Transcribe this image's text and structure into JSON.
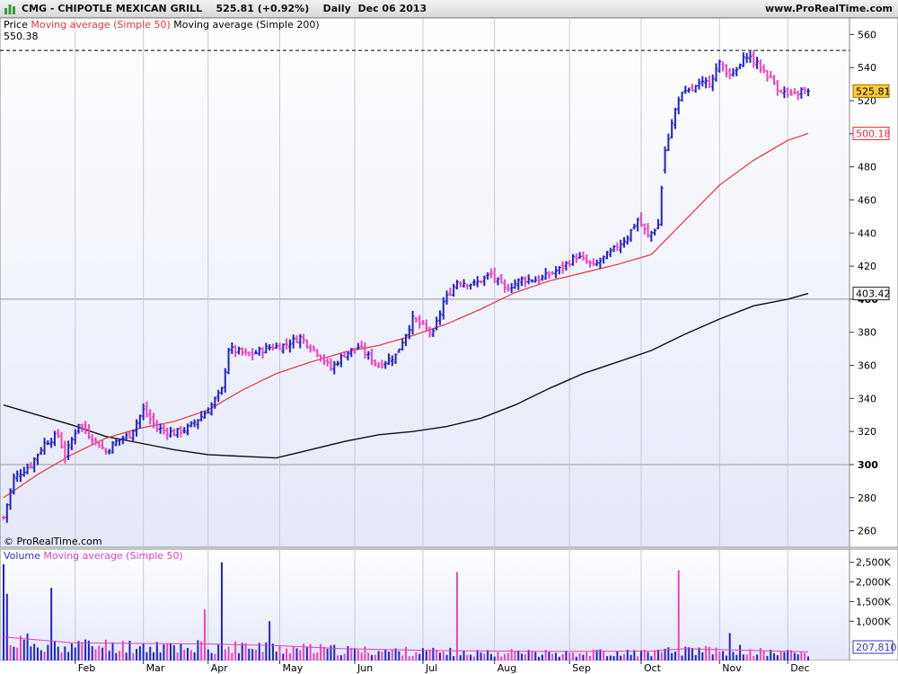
{
  "header": {
    "symbol_text": "CMG - CHIPOTLE MEXICAN GRILL",
    "price_change": "525.81 (+0.92%)",
    "period_date": "Daily  Dec 06 2013",
    "site": "www.ProRealTime.com"
  },
  "legend": {
    "price_label": "Price",
    "ma50_label": "Moving average (Simple 50)",
    "ma200_label": "Moving average (Simple 200)",
    "high_label": "550.38",
    "copyright": "© ProRealTime.com",
    "volume_label": "Volume",
    "vol_ma_label": "Moving average (Simple 50)"
  },
  "chart_data": {
    "type": "ohlc",
    "price_axis": {
      "min": 250,
      "max": 570,
      "ticks": [
        260,
        280,
        300,
        320,
        340,
        360,
        380,
        400,
        420,
        440,
        460,
        480,
        500,
        520,
        540,
        560
      ],
      "bold_ticks": [
        300,
        400
      ]
    },
    "volume_axis": {
      "max": 2700,
      "ticks": [
        1000,
        1500,
        2000,
        2500
      ],
      "tick_labels": [
        "1,000K",
        "1,500K",
        "2,000K",
        "2,500K"
      ],
      "last_label": "207,810"
    },
    "x_labels": [
      {
        "label": "Feb",
        "day": 21
      },
      {
        "label": "Mar",
        "day": 41
      },
      {
        "label": "Apr",
        "day": 60
      },
      {
        "label": "May",
        "day": 81
      },
      {
        "label": "Jun",
        "day": 103
      },
      {
        "label": "Jul",
        "day": 123
      },
      {
        "label": "Aug",
        "day": 144
      },
      {
        "label": "Sep",
        "day": 166
      },
      {
        "label": "Oct",
        "day": 187
      },
      {
        "label": "Nov",
        "day": 210
      },
      {
        "label": "Dec",
        "day": 230
      }
    ],
    "day_range": [
      0,
      236
    ],
    "last_price": 525.81,
    "last_label": "525.81",
    "ma50_last": 500.18,
    "ma50_label": "500.18",
    "ma200_last": 403.42,
    "ma200_label": "403.42",
    "high_line": 550.38,
    "price_anchors": [
      [
        0,
        268
      ],
      [
        3,
        292
      ],
      [
        8,
        300
      ],
      [
        12,
        313
      ],
      [
        16,
        318
      ],
      [
        18,
        305
      ],
      [
        22,
        325
      ],
      [
        26,
        316
      ],
      [
        30,
        308
      ],
      [
        33,
        314
      ],
      [
        37,
        318
      ],
      [
        41,
        333
      ],
      [
        45,
        322
      ],
      [
        50,
        319
      ],
      [
        54,
        322
      ],
      [
        60,
        333
      ],
      [
        64,
        345
      ],
      [
        66,
        370
      ],
      [
        72,
        366
      ],
      [
        78,
        371
      ],
      [
        82,
        372
      ],
      [
        87,
        377
      ],
      [
        92,
        368
      ],
      [
        96,
        358
      ],
      [
        100,
        367
      ],
      [
        104,
        371
      ],
      [
        110,
        360
      ],
      [
        115,
        366
      ],
      [
        120,
        388
      ],
      [
        126,
        379
      ],
      [
        129,
        398
      ],
      [
        133,
        411
      ],
      [
        138,
        409
      ],
      [
        143,
        415
      ],
      [
        147,
        406
      ],
      [
        152,
        412
      ],
      [
        157,
        412
      ],
      [
        163,
        418
      ],
      [
        168,
        426
      ],
      [
        173,
        420
      ],
      [
        178,
        428
      ],
      [
        183,
        438
      ],
      [
        186,
        448
      ],
      [
        189,
        438
      ],
      [
        192,
        445
      ],
      [
        194,
        490
      ],
      [
        198,
        522
      ],
      [
        203,
        528
      ],
      [
        207,
        532
      ],
      [
        210,
        542
      ],
      [
        214,
        535
      ],
      [
        218,
        548
      ],
      [
        223,
        538
      ],
      [
        227,
        528
      ],
      [
        231,
        522
      ],
      [
        234,
        526
      ]
    ],
    "ma50": [
      [
        0,
        280
      ],
      [
        10,
        294
      ],
      [
        20,
        306
      ],
      [
        30,
        316
      ],
      [
        40,
        322
      ],
      [
        50,
        326
      ],
      [
        60,
        333
      ],
      [
        70,
        345
      ],
      [
        80,
        355
      ],
      [
        90,
        362
      ],
      [
        100,
        368
      ],
      [
        110,
        372
      ],
      [
        120,
        378
      ],
      [
        130,
        385
      ],
      [
        140,
        394
      ],
      [
        150,
        404
      ],
      [
        160,
        411
      ],
      [
        170,
        416
      ],
      [
        180,
        421
      ],
      [
        190,
        427
      ],
      [
        200,
        448
      ],
      [
        210,
        469
      ],
      [
        220,
        484
      ],
      [
        230,
        496
      ],
      [
        236,
        500.18
      ]
    ],
    "ma200": [
      [
        0,
        336
      ],
      [
        10,
        330
      ],
      [
        20,
        324
      ],
      [
        30,
        317
      ],
      [
        40,
        313
      ],
      [
        50,
        309
      ],
      [
        60,
        306
      ],
      [
        70,
        305
      ],
      [
        80,
        304
      ],
      [
        90,
        309
      ],
      [
        100,
        314
      ],
      [
        110,
        318
      ],
      [
        120,
        320
      ],
      [
        130,
        323
      ],
      [
        140,
        328
      ],
      [
        150,
        336
      ],
      [
        160,
        346
      ],
      [
        170,
        355
      ],
      [
        180,
        362
      ],
      [
        190,
        369
      ],
      [
        200,
        379
      ],
      [
        210,
        388
      ],
      [
        220,
        396
      ],
      [
        230,
        400
      ],
      [
        236,
        403.42
      ]
    ],
    "volume_spikes": [
      [
        0,
        2450
      ],
      [
        1,
        1700
      ],
      [
        14,
        1850
      ],
      [
        64,
        2500
      ],
      [
        59,
        1300
      ],
      [
        78,
        1000
      ],
      [
        133,
        2250
      ],
      [
        198,
        2300
      ],
      [
        213,
        700
      ],
      [
        216,
        400
      ]
    ],
    "volume_ma": [
      [
        0,
        600
      ],
      [
        20,
        450
      ],
      [
        60,
        420
      ],
      [
        80,
        380
      ],
      [
        100,
        300
      ],
      [
        130,
        250
      ],
      [
        160,
        230
      ],
      [
        190,
        240
      ],
      [
        200,
        300
      ],
      [
        236,
        220
      ]
    ]
  }
}
